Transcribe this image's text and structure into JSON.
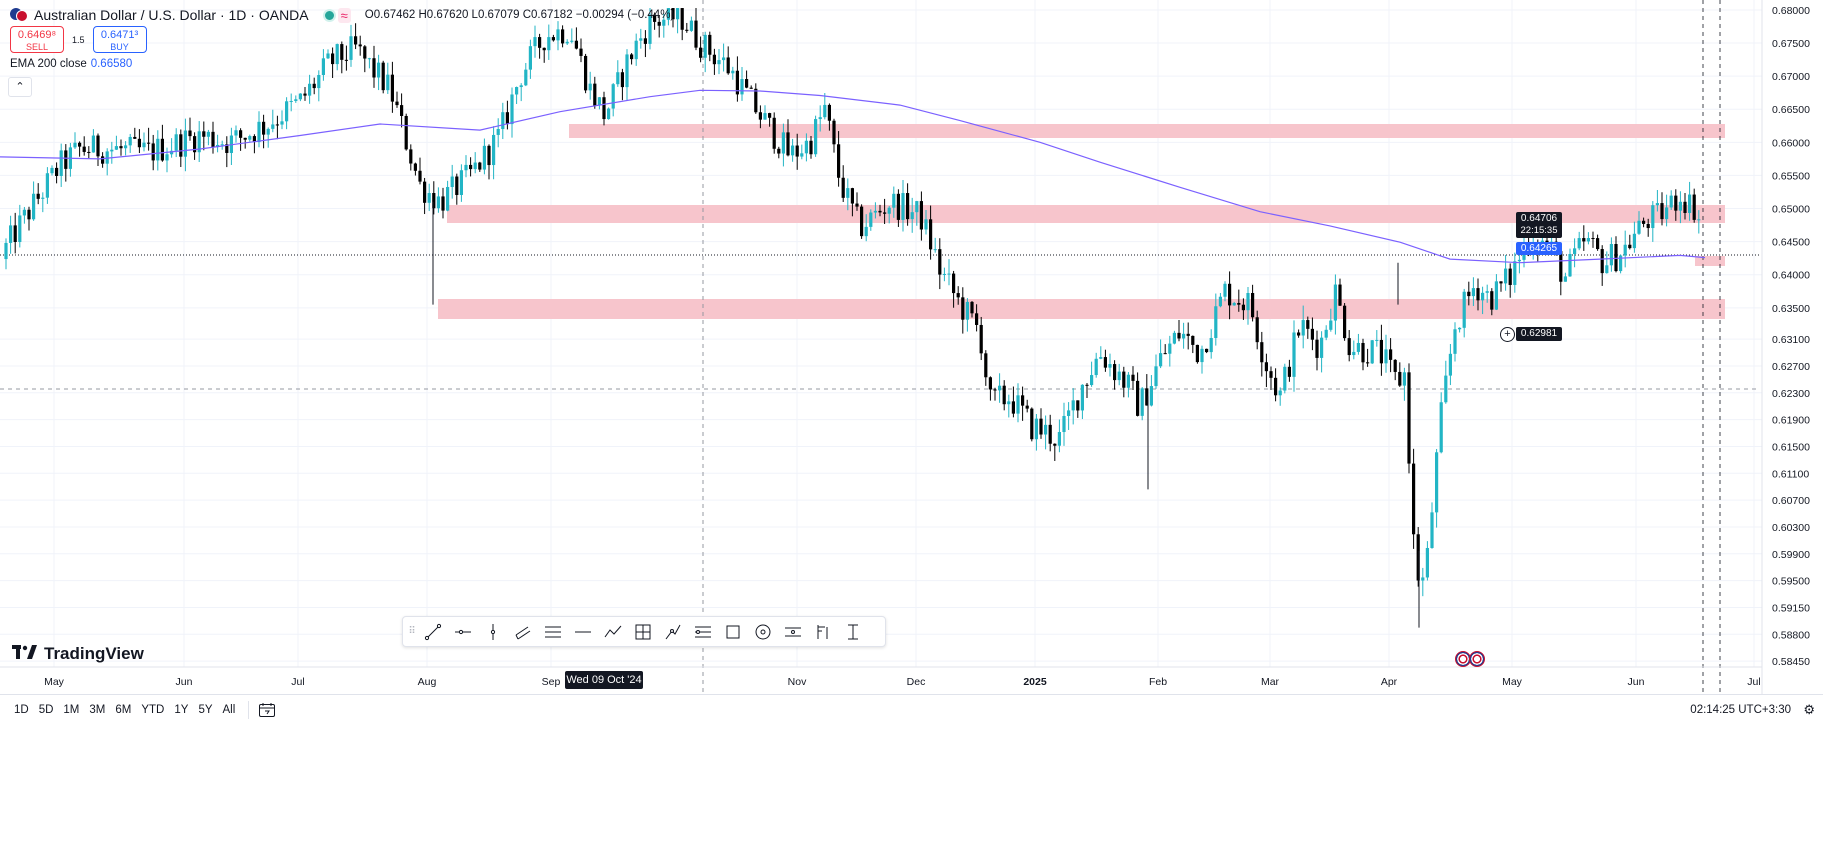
{
  "header": {
    "symbol_title": "Australian Dollar / U.S. Dollar · 1D · OANDA",
    "ohlc_text": "O0.67462 H0.67620 L0.67079 C0.67182 −0.00294 (−0.44%)"
  },
  "trade": {
    "sell_price": "0.6469⁸",
    "sell_label": "SELL",
    "spread": "1.5",
    "buy_price": "0.6471³",
    "buy_label": "BUY"
  },
  "indicator": {
    "label": "EMA 200 close",
    "value": "0.66580"
  },
  "price_axis": {
    "ticks": [
      "0.68000",
      "0.67500",
      "0.67000",
      "0.66500",
      "0.66000",
      "0.65500",
      "0.65000",
      "0.64500",
      "0.64000",
      "0.63500",
      "0.63100",
      "0.62700",
      "0.62300",
      "0.61900",
      "0.61500",
      "0.61100",
      "0.60700",
      "0.60300",
      "0.59900",
      "0.59500",
      "0.59150",
      "0.58800",
      "0.58450"
    ],
    "last_price": "0.64706",
    "countdown": "22:15:35",
    "ema_price": "0.64265",
    "crosshair_price": "0.62981"
  },
  "time_axis": {
    "labels": [
      "May",
      "Jun",
      "Jul",
      "Aug",
      "Sep",
      "Nov",
      "Dec",
      "2025",
      "Feb",
      "Mar",
      "Apr",
      "May",
      "Jun",
      "Jul"
    ],
    "crosshair_date": "Wed 09 Oct '24"
  },
  "colors": {
    "up": "#22b5c5",
    "down": "#000000",
    "ema": "#7b61ff",
    "zone": "#f7c5cc",
    "accent": "#2962ff"
  },
  "toolbar": {
    "tools": [
      "trend-line-icon",
      "horizontal-ray-icon",
      "vertical-line-icon",
      "parallel-channel-icon",
      "fib-retracement-icon",
      "horizontal-line-icon",
      "polyline-icon",
      "long-position-icon",
      "path-icon",
      "pitchfork-icon",
      "rectangle-icon",
      "circle-icon",
      "regression-icon",
      "brush-icon",
      "measure-icon"
    ]
  },
  "branding": {
    "logo_text": "TradingView"
  },
  "bottom": {
    "ranges": [
      "1D",
      "5D",
      "1M",
      "3M",
      "6M",
      "YTD",
      "1Y",
      "5Y",
      "All"
    ],
    "clock": "02:14:25 UTC+3:30"
  }
}
